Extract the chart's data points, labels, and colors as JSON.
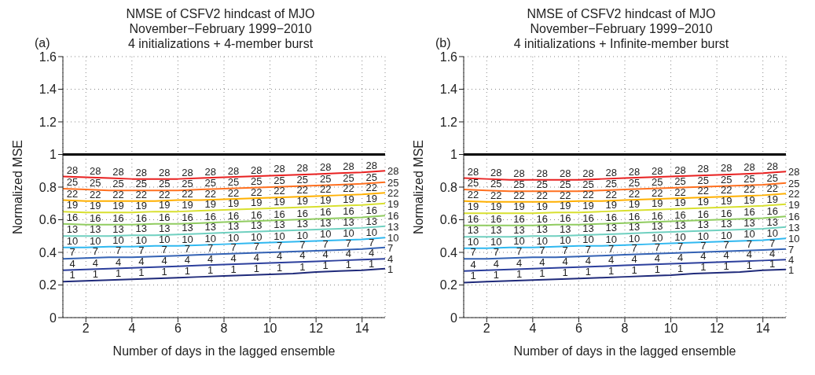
{
  "chart_data": [
    {
      "type": "line",
      "title": "NMSE of CSFV2 hindcast of MJO\nNovember−February 1999−2010",
      "subtitle": "4 initializations + 4-member burst",
      "annotations": [
        "(a)"
      ],
      "xlabel": "Number of days in the lagged ensemble",
      "ylabel": "Normalized MSE",
      "x": [
        1,
        2,
        3,
        4,
        5,
        6,
        7,
        8,
        9,
        10,
        11,
        12,
        13,
        14,
        15
      ],
      "xlim": [
        1,
        15
      ],
      "xticks": [
        2,
        4,
        6,
        8,
        10,
        12,
        14
      ],
      "ylim": [
        0,
        1.6
      ],
      "yticks": [
        0,
        0.2,
        0.4,
        0.6,
        0.8,
        1,
        1.2,
        1.4,
        1.6
      ],
      "grid": true,
      "marker": "none",
      "ref_lines": [
        {
          "axis": "y",
          "value": 1,
          "color": "#000000"
        }
      ],
      "series": [
        {
          "name": "1",
          "color": "#1f2a7a",
          "values": [
            0.22,
            0.225,
            0.23,
            0.235,
            0.24,
            0.245,
            0.25,
            0.255,
            0.26,
            0.265,
            0.27,
            0.28,
            0.285,
            0.29,
            0.3
          ]
        },
        {
          "name": "4",
          "color": "#2c3f9c",
          "values": [
            0.29,
            0.295,
            0.3,
            0.305,
            0.31,
            0.315,
            0.32,
            0.325,
            0.33,
            0.335,
            0.34,
            0.345,
            0.35,
            0.355,
            0.36
          ]
        },
        {
          "name": "7",
          "color": "#3462b4",
          "values": [
            0.36,
            0.365,
            0.37,
            0.37,
            0.375,
            0.38,
            0.385,
            0.39,
            0.395,
            0.4,
            0.405,
            0.41,
            0.415,
            0.42,
            0.43
          ]
        },
        {
          "name": "10",
          "color": "#30b8f0",
          "values": [
            0.43,
            0.43,
            0.435,
            0.435,
            0.44,
            0.44,
            0.445,
            0.45,
            0.455,
            0.46,
            0.465,
            0.47,
            0.475,
            0.48,
            0.49
          ]
        },
        {
          "name": "13",
          "color": "#70d0c0",
          "values": [
            0.5,
            0.5,
            0.5,
            0.505,
            0.505,
            0.51,
            0.515,
            0.52,
            0.525,
            0.53,
            0.535,
            0.54,
            0.545,
            0.55,
            0.56
          ]
        },
        {
          "name": "16",
          "color": "#90cc60",
          "values": [
            0.575,
            0.57,
            0.57,
            0.57,
            0.575,
            0.575,
            0.58,
            0.585,
            0.59,
            0.595,
            0.6,
            0.605,
            0.61,
            0.615,
            0.625
          ]
        },
        {
          "name": "19",
          "color": "#d8e030",
          "values": [
            0.65,
            0.645,
            0.645,
            0.645,
            0.65,
            0.65,
            0.655,
            0.66,
            0.665,
            0.67,
            0.675,
            0.68,
            0.685,
            0.69,
            0.7
          ]
        },
        {
          "name": "22",
          "color": "#ffb000",
          "values": [
            0.72,
            0.715,
            0.715,
            0.715,
            0.715,
            0.72,
            0.72,
            0.725,
            0.73,
            0.735,
            0.74,
            0.745,
            0.75,
            0.755,
            0.765
          ]
        },
        {
          "name": "25",
          "color": "#ff7020",
          "values": [
            0.79,
            0.785,
            0.78,
            0.78,
            0.78,
            0.78,
            0.785,
            0.79,
            0.795,
            0.8,
            0.805,
            0.81,
            0.815,
            0.82,
            0.83
          ]
        },
        {
          "name": "28",
          "color": "#e82020",
          "values": [
            0.865,
            0.86,
            0.855,
            0.85,
            0.85,
            0.85,
            0.855,
            0.86,
            0.865,
            0.87,
            0.875,
            0.88,
            0.885,
            0.89,
            0.9
          ]
        }
      ]
    },
    {
      "type": "line",
      "title": "NMSE of CSFV2 hindcast of MJO\nNovember−February 1999−2010",
      "subtitle": "4 initializations + Infinite-member burst",
      "annotations": [
        "(b)"
      ],
      "xlabel": "Number of days in the lagged ensemble",
      "ylabel": "Normalized MSE",
      "x": [
        1,
        2,
        3,
        4,
        5,
        6,
        7,
        8,
        9,
        10,
        11,
        12,
        13,
        14,
        15
      ],
      "xlim": [
        1,
        15
      ],
      "xticks": [
        2,
        4,
        6,
        8,
        10,
        12,
        14
      ],
      "ylim": [
        0,
        1.6
      ],
      "yticks": [
        0,
        0.2,
        0.4,
        0.6,
        0.8,
        1,
        1.2,
        1.4,
        1.6
      ],
      "grid": true,
      "marker": "none",
      "ref_lines": [
        {
          "axis": "y",
          "value": 1,
          "color": "#000000"
        }
      ],
      "series": [
        {
          "name": "1",
          "color": "#1f2a7a",
          "values": [
            0.215,
            0.22,
            0.225,
            0.23,
            0.235,
            0.24,
            0.245,
            0.25,
            0.255,
            0.26,
            0.27,
            0.275,
            0.28,
            0.29,
            0.295
          ]
        },
        {
          "name": "4",
          "color": "#2c3f9c",
          "values": [
            0.285,
            0.29,
            0.295,
            0.3,
            0.305,
            0.31,
            0.315,
            0.32,
            0.325,
            0.33,
            0.335,
            0.34,
            0.345,
            0.35,
            0.355
          ]
        },
        {
          "name": "7",
          "color": "#3462b4",
          "values": [
            0.36,
            0.36,
            0.365,
            0.37,
            0.37,
            0.375,
            0.38,
            0.385,
            0.39,
            0.395,
            0.4,
            0.405,
            0.41,
            0.415,
            0.42
          ]
        },
        {
          "name": "10",
          "color": "#30b8f0",
          "values": [
            0.425,
            0.425,
            0.43,
            0.43,
            0.435,
            0.44,
            0.44,
            0.445,
            0.45,
            0.455,
            0.46,
            0.465,
            0.47,
            0.475,
            0.485
          ]
        },
        {
          "name": "13",
          "color": "#70d0c0",
          "values": [
            0.495,
            0.495,
            0.495,
            0.5,
            0.5,
            0.505,
            0.51,
            0.515,
            0.52,
            0.525,
            0.53,
            0.535,
            0.54,
            0.545,
            0.555
          ]
        },
        {
          "name": "16",
          "color": "#90cc60",
          "values": [
            0.565,
            0.565,
            0.565,
            0.565,
            0.57,
            0.57,
            0.575,
            0.58,
            0.585,
            0.59,
            0.595,
            0.6,
            0.605,
            0.61,
            0.62
          ]
        },
        {
          "name": "19",
          "color": "#d8e030",
          "values": [
            0.64,
            0.64,
            0.64,
            0.64,
            0.645,
            0.645,
            0.65,
            0.655,
            0.66,
            0.665,
            0.67,
            0.675,
            0.68,
            0.685,
            0.695
          ]
        },
        {
          "name": "22",
          "color": "#ffb000",
          "values": [
            0.715,
            0.71,
            0.71,
            0.71,
            0.71,
            0.715,
            0.715,
            0.72,
            0.725,
            0.73,
            0.735,
            0.74,
            0.745,
            0.75,
            0.76
          ]
        },
        {
          "name": "25",
          "color": "#ff7020",
          "values": [
            0.785,
            0.78,
            0.775,
            0.775,
            0.775,
            0.775,
            0.78,
            0.785,
            0.79,
            0.795,
            0.8,
            0.805,
            0.81,
            0.815,
            0.825
          ]
        },
        {
          "name": "28",
          "color": "#e82020",
          "values": [
            0.855,
            0.85,
            0.845,
            0.845,
            0.845,
            0.845,
            0.85,
            0.855,
            0.86,
            0.865,
            0.87,
            0.875,
            0.88,
            0.885,
            0.895
          ]
        }
      ]
    }
  ]
}
